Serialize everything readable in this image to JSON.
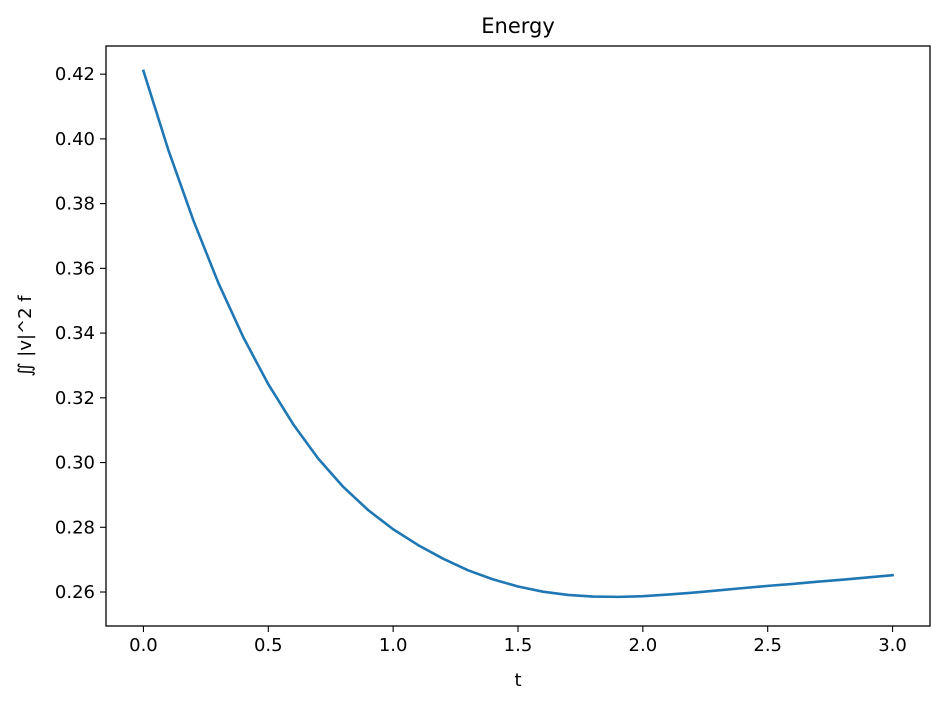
{
  "chart_data": {
    "type": "line",
    "title": "Energy",
    "xlabel": "t",
    "ylabel": "∬ |v|^2 f",
    "xlim": [
      -0.15,
      3.15
    ],
    "ylim": [
      0.2495,
      0.4287
    ],
    "xticks": [
      0.0,
      0.5,
      1.0,
      1.5,
      2.0,
      2.5,
      3.0
    ],
    "xtick_labels": [
      "0.0",
      "0.5",
      "1.0",
      "1.5",
      "2.0",
      "2.5",
      "3.0"
    ],
    "yticks": [
      0.26,
      0.28,
      0.3,
      0.32,
      0.34,
      0.36,
      0.38,
      0.4,
      0.42
    ],
    "ytick_labels": [
      "0.26",
      "0.28",
      "0.30",
      "0.32",
      "0.34",
      "0.36",
      "0.38",
      "0.40",
      "0.42"
    ],
    "grid": false,
    "series": [
      {
        "color": "#1f77b4",
        "x": [
          0.0,
          0.1,
          0.2,
          0.3,
          0.4,
          0.5,
          0.6,
          0.7,
          0.8,
          0.9,
          1.0,
          1.1,
          1.2,
          1.3,
          1.4,
          1.5,
          1.6,
          1.7,
          1.8,
          1.9,
          2.0,
          2.1,
          2.2,
          2.3,
          2.4,
          2.5,
          2.6,
          2.7,
          2.8,
          2.9,
          3.0
        ],
        "y": [
          0.421,
          0.3965,
          0.3748,
          0.3555,
          0.3387,
          0.3242,
          0.3118,
          0.3012,
          0.2925,
          0.2853,
          0.2794,
          0.2745,
          0.2703,
          0.2667,
          0.2639,
          0.2617,
          0.2601,
          0.2591,
          0.2586,
          0.2585,
          0.2587,
          0.2592,
          0.2598,
          0.2605,
          0.2612,
          0.2619,
          0.2625,
          0.2632,
          0.2638,
          0.2645,
          0.2652
        ]
      }
    ]
  }
}
